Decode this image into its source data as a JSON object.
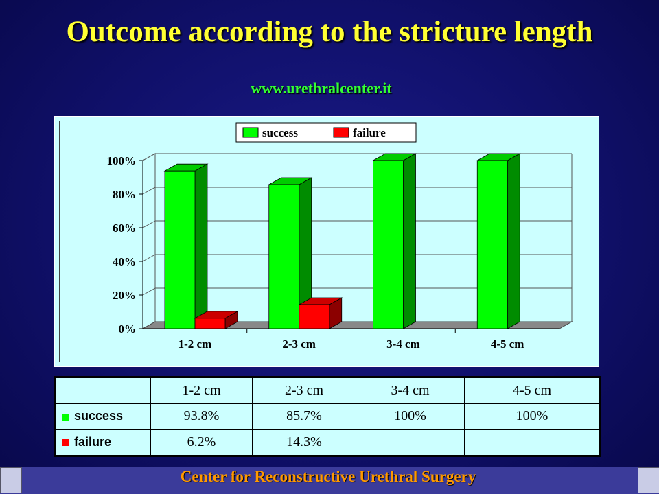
{
  "slide": {
    "title": "Outcome according to the stricture length",
    "url": "www.urethralcenter.it",
    "footer": "Center for Reconstructive Urethral Surgery"
  },
  "table": {
    "headers": [
      "",
      "1-2 cm",
      "2-3 cm",
      "3-4 cm",
      "4-5 cm"
    ],
    "rows": [
      {
        "label": "success",
        "color": "#00ff00",
        "values": [
          "93.8%",
          "85.7%",
          "100%",
          "100%"
        ]
      },
      {
        "label": "failure",
        "color": "#ff0000",
        "values": [
          "6.2%",
          "14.3%",
          "",
          ""
        ]
      }
    ]
  },
  "chart_data": {
    "type": "bar",
    "categories": [
      "1-2 cm",
      "2-3 cm",
      "3-4 cm",
      "4-5 cm"
    ],
    "series": [
      {
        "name": "success",
        "color": "#00ff00",
        "values": [
          93.8,
          85.7,
          100,
          100
        ]
      },
      {
        "name": "failure",
        "color": "#ff0000",
        "values": [
          6.2,
          14.3,
          0,
          0
        ]
      }
    ],
    "yticks": [
      "0%",
      "20%",
      "40%",
      "60%",
      "80%",
      "100%"
    ],
    "ylim": [
      0,
      100
    ],
    "grid": true,
    "legend": "top",
    "style": "3d-columns"
  }
}
